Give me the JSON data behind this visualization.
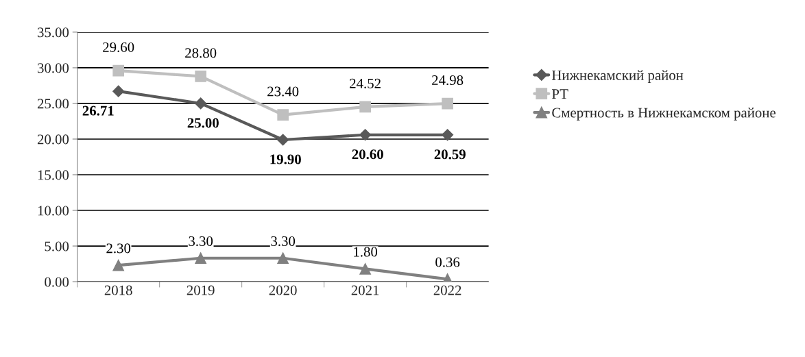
{
  "chart_data": {
    "type": "line",
    "categories": [
      "2018",
      "2019",
      "2020",
      "2021",
      "2022"
    ],
    "series": [
      {
        "name": "Нижнекамский район",
        "color": "#595959",
        "marker": "diamond",
        "values": [
          26.71,
          25.0,
          19.9,
          20.6,
          20.59
        ],
        "value_labels": [
          "26.71",
          "25.00",
          "19.90",
          "20.60",
          "20.59"
        ]
      },
      {
        "name": "РТ",
        "color": "#bfbfbf",
        "marker": "square",
        "values": [
          29.6,
          28.8,
          23.4,
          24.52,
          24.98
        ],
        "value_labels": [
          "29.60",
          "28.80",
          "23.40",
          "24.52",
          "24.98"
        ]
      },
      {
        "name": "Смертность в Нижнекамском районе",
        "color": "#808080",
        "marker": "triangle",
        "values": [
          2.3,
          3.3,
          3.3,
          1.8,
          0.36
        ],
        "value_labels": [
          "2.30",
          "3.30",
          "3.30",
          "1.80",
          "0.36"
        ]
      }
    ],
    "ylim": [
      0,
      35
    ],
    "yticks": [
      {
        "value": 0,
        "label": "0.00"
      },
      {
        "value": 5,
        "label": "5.00"
      },
      {
        "value": 10,
        "label": "10.00"
      },
      {
        "value": 15,
        "label": "15.00"
      },
      {
        "value": 20,
        "label": "20.00"
      },
      {
        "value": 25,
        "label": "25.00"
      },
      {
        "value": 30,
        "label": "30.00"
      },
      {
        "value": 35,
        "label": "35.00"
      }
    ],
    "grid": "y",
    "legend": "right",
    "line_style": "solid"
  }
}
